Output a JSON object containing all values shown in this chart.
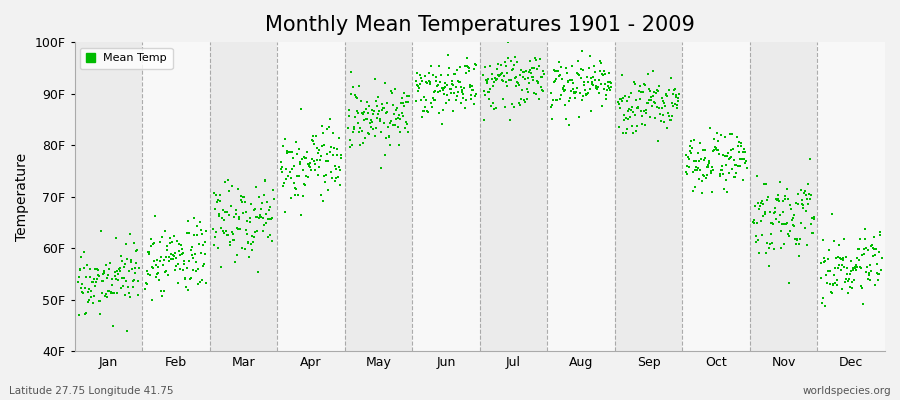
{
  "title": "Monthly Mean Temperatures 1901 - 2009",
  "ylabel": "Temperature",
  "xlabel_labels": [
    "Jan",
    "Feb",
    "Mar",
    "Apr",
    "May",
    "Jun",
    "Jul",
    "Aug",
    "Sep",
    "Oct",
    "Nov",
    "Dec"
  ],
  "ytick_labels": [
    "40F",
    "50F",
    "60F",
    "70F",
    "80F",
    "90F",
    "100F"
  ],
  "ytick_values": [
    40,
    50,
    60,
    70,
    80,
    90,
    100
  ],
  "ylim": [
    40,
    100
  ],
  "dot_color": "#00bb00",
  "background_color": "#f2f2f2",
  "plot_bg_color": "#f2f2f2",
  "band_light": "#f8f8f8",
  "band_dark": "#ebebeb",
  "title_fontsize": 15,
  "axis_fontsize": 10,
  "tick_fontsize": 9,
  "legend_label": "Mean Temp",
  "subtitle_left": "Latitude 27.75 Longitude 41.75",
  "subtitle_right": "worldspecies.org",
  "n_years": 109,
  "monthly_mean_F": [
    52.5,
    57.0,
    65.0,
    75.5,
    84.5,
    90.0,
    92.0,
    91.0,
    87.0,
    76.0,
    65.0,
    55.0
  ],
  "monthly_std_F": [
    3.0,
    3.5,
    4.0,
    4.0,
    3.0,
    2.5,
    2.5,
    2.5,
    3.0,
    3.0,
    3.5,
    3.0
  ],
  "trend_per_century": [
    2.0,
    2.0,
    2.0,
    2.0,
    1.5,
    1.5,
    1.5,
    1.5,
    1.5,
    2.0,
    2.0,
    2.0
  ],
  "seed": 17
}
